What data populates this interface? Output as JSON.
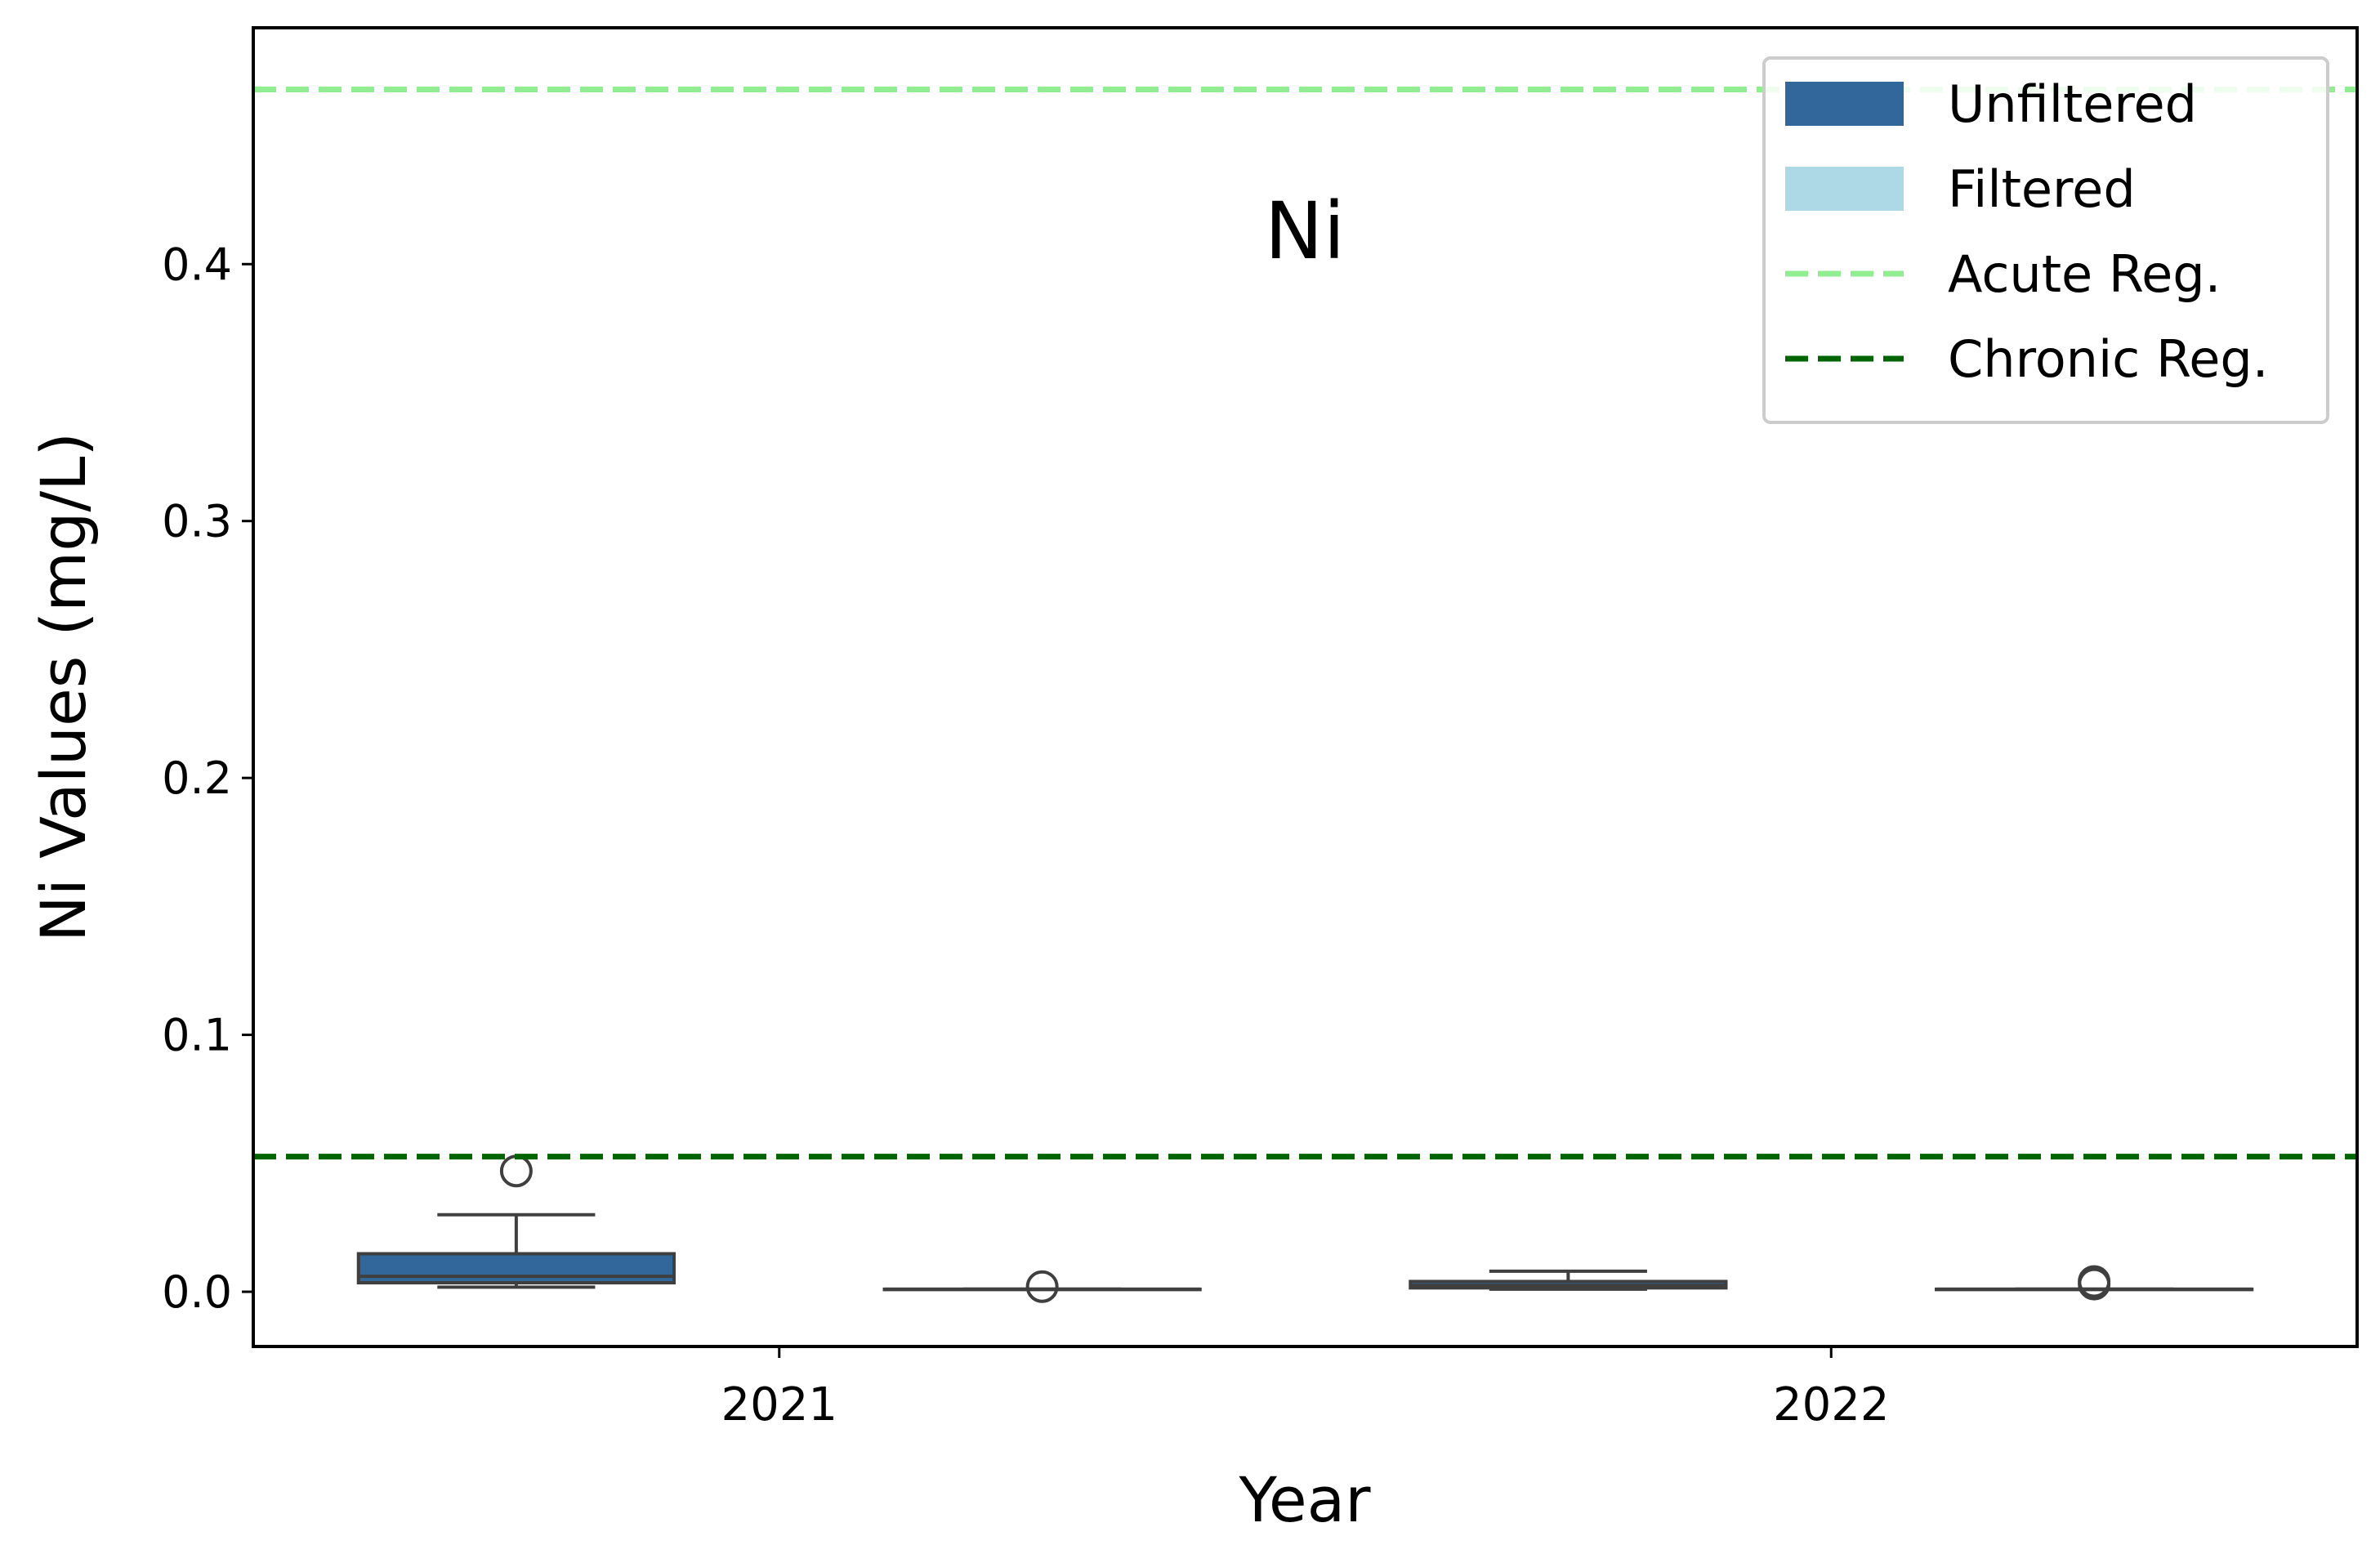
{
  "chart_data": {
    "type": "box",
    "title": "Ni",
    "x_label": "Year",
    "y_label": "Ni Values (mg/L)",
    "categories": [
      "2021",
      "2022"
    ],
    "ylim": [
      -0.0213,
      0.492
    ],
    "yticks": [
      {
        "value": 0,
        "label": "0.0"
      },
      0.1,
      0.2,
      0.3,
      0.4
    ],
    "series": [
      {
        "name": "Unfiltered",
        "color": "#31679a",
        "boxes": [
          {
            "whislo": 0.0018,
            "q1": 0.0035,
            "med": 0.006,
            "q3": 0.0148,
            "whishi": 0.03,
            "fliers": [
              0.047
            ]
          },
          {
            "whislo": 0.001,
            "q1": 0.0015,
            "med": 0.0025,
            "q3": 0.004,
            "whishi": 0.008,
            "fliers": []
          }
        ]
      },
      {
        "name": "Filtered",
        "color": "#add8e6",
        "boxes": [
          {
            "whislo": 0.001,
            "q1": 0.001,
            "med": 0.001,
            "q3": 0.001,
            "whishi": 0.001,
            "fliers": [
              0.002
            ]
          },
          {
            "whislo": 0.001,
            "q1": 0.001,
            "med": 0.001,
            "q3": 0.001,
            "whishi": 0.001,
            "fliers": [
              0.003,
              0.004
            ]
          }
        ]
      }
    ],
    "reference_lines": [
      {
        "name": "Acute Reg.",
        "value": 0.468,
        "color": "#90ee90"
      },
      {
        "name": "Chronic Reg.",
        "value": 0.0526,
        "color": "#006400"
      }
    ],
    "legend": "upper right"
  }
}
